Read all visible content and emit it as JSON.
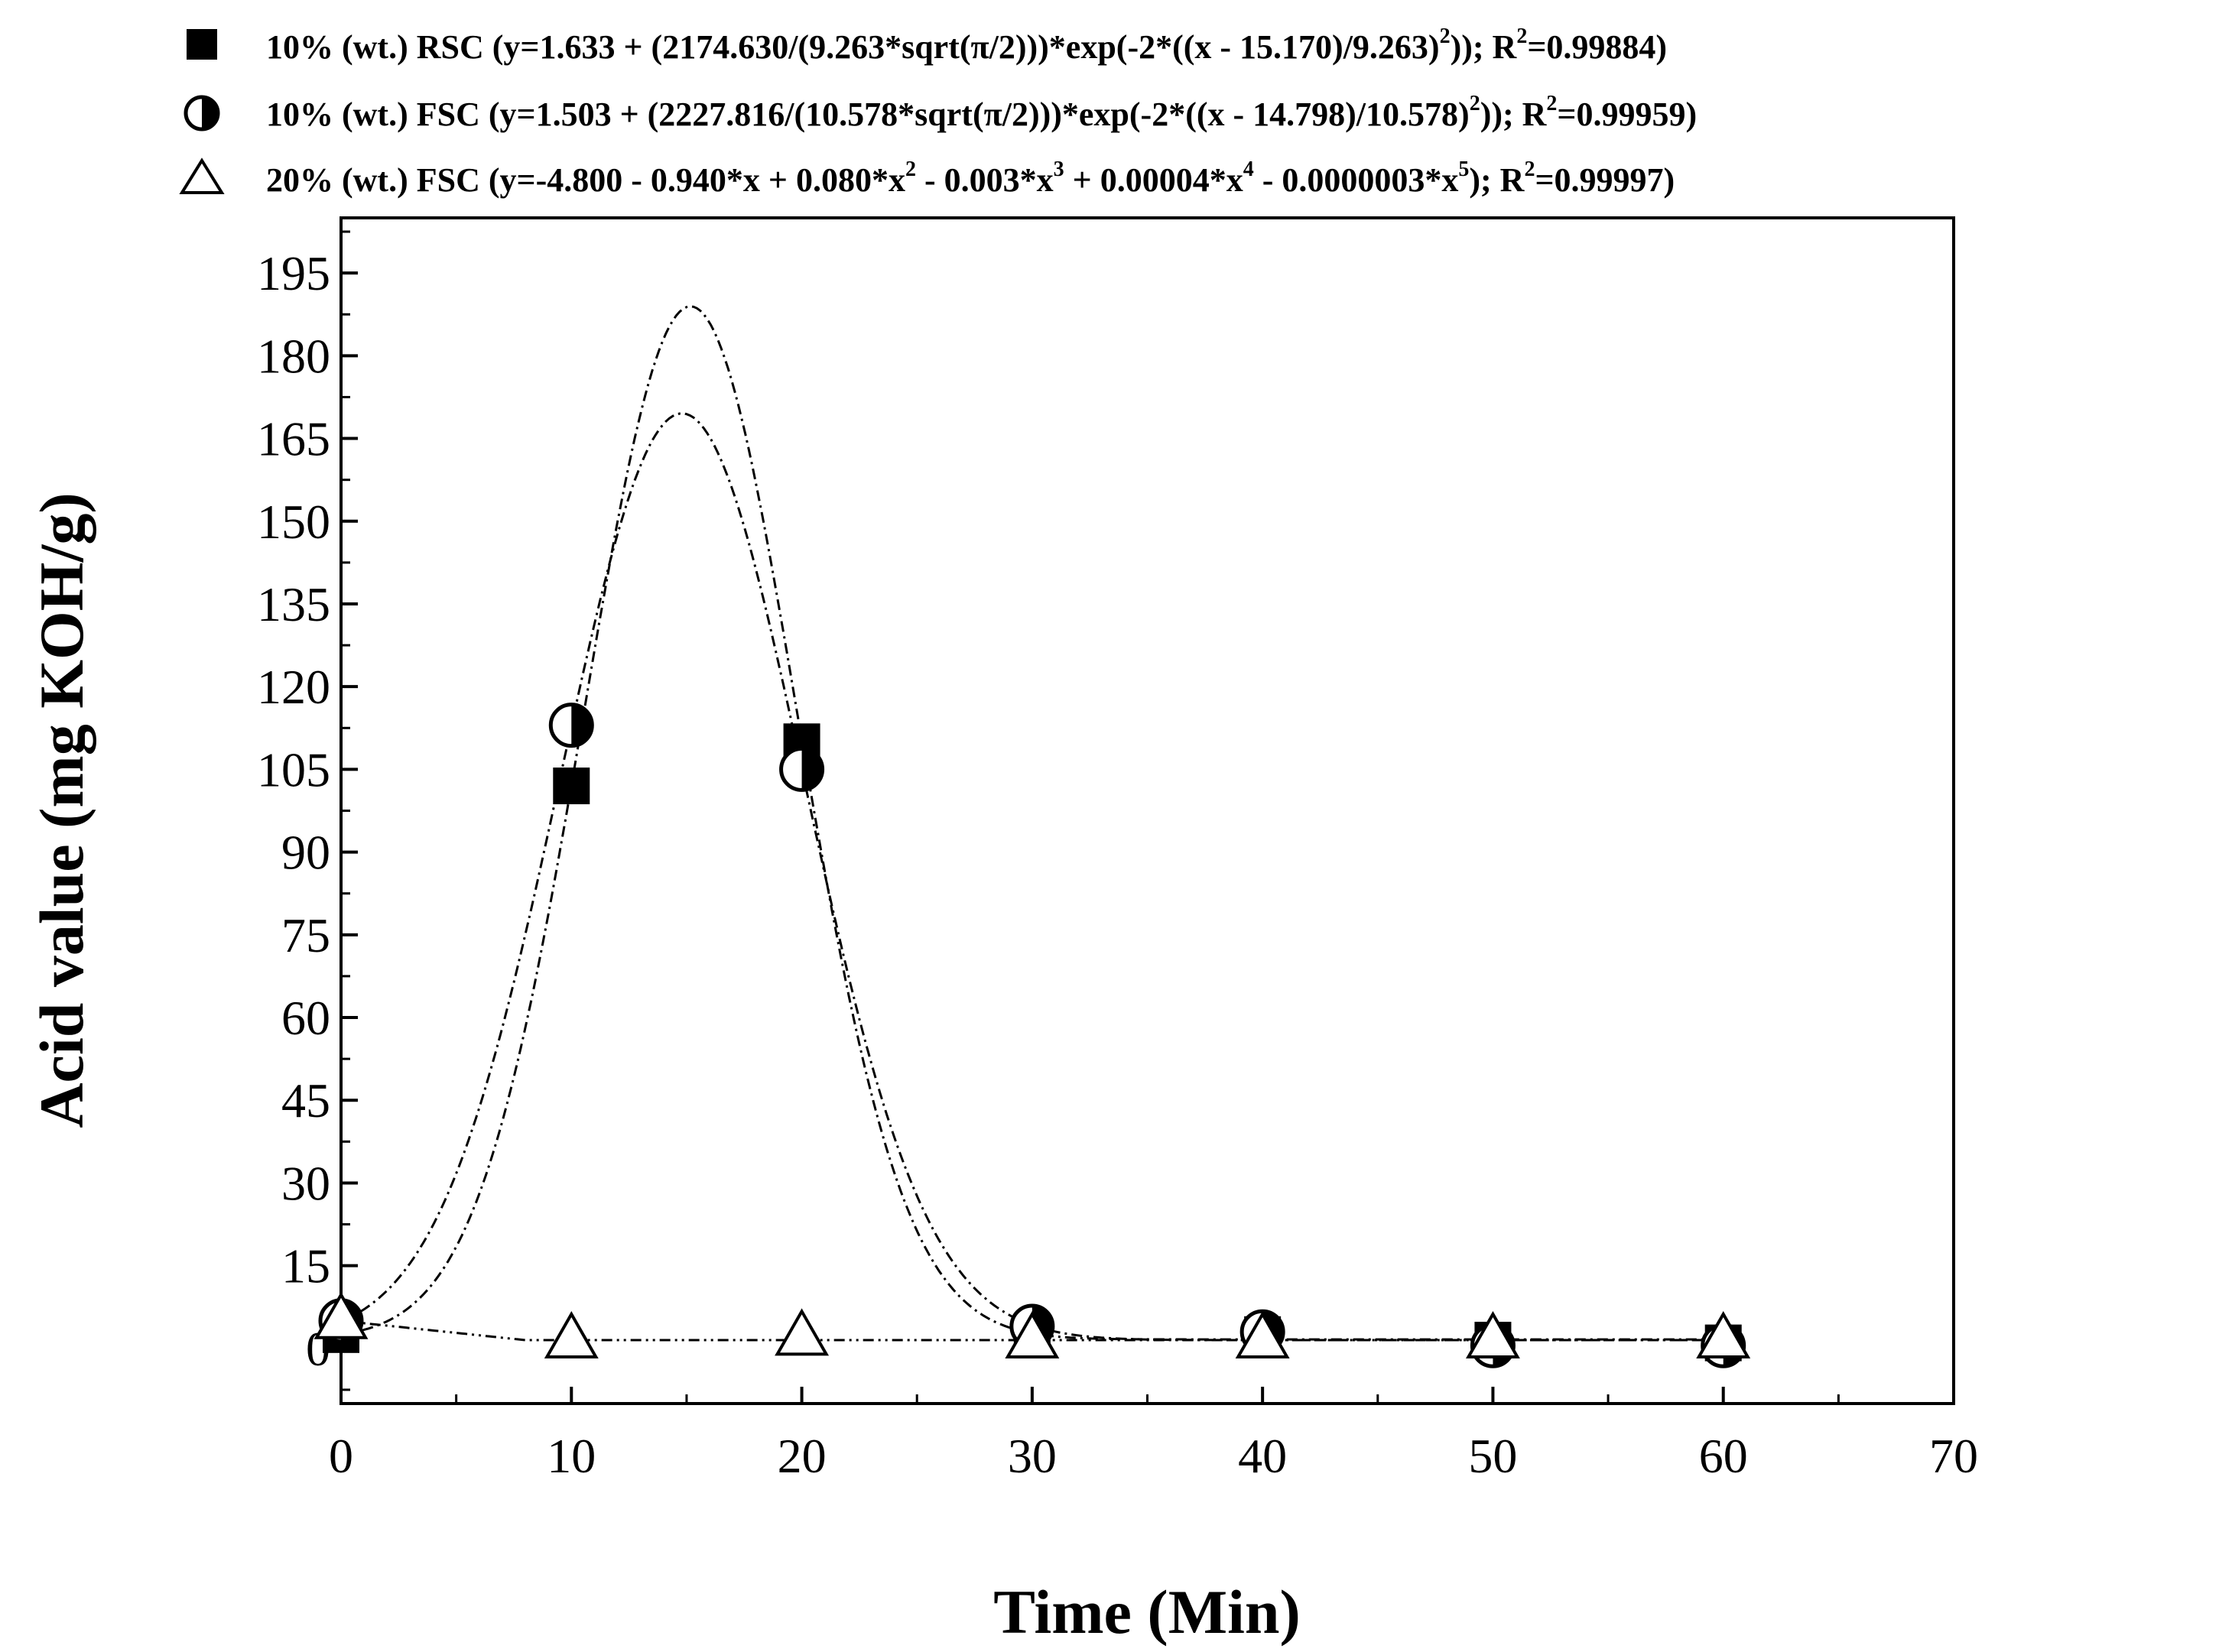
{
  "chart_data": {
    "type": "scatter",
    "title": "",
    "xlabel": "Time (Min)",
    "ylabel": "Acid value (mg KOH/g)",
    "xlim": [
      0,
      70
    ],
    "ylim": [
      -10,
      205
    ],
    "x_ticks": [
      0,
      10,
      20,
      30,
      40,
      50,
      60,
      70
    ],
    "y_ticks": [
      0,
      15,
      30,
      45,
      60,
      75,
      90,
      105,
      120,
      135,
      150,
      165,
      180,
      195
    ],
    "grid": false,
    "legend_position": "top",
    "series": [
      {
        "name": "10% (wt.) RSC",
        "marker": "filled-square",
        "fit_equation": "y=1.633 + (2174.630/(9.263*sqrt(π/2)))*exp(-2*((x - 15.170)/9.263)²)",
        "r_squared": "0.99884",
        "x": [
          0,
          10,
          20,
          30,
          40,
          50,
          60
        ],
        "y": [
          2.5,
          102,
          110,
          1.5,
          2.5,
          1.5,
          1.0
        ]
      },
      {
        "name": "10% (wt.) FSC",
        "marker": "half-filled-circle",
        "fit_equation": "y=1.503 + (2227.816/(10.578*sqrt(π/2)))*exp(-2*((x - 14.798)/10.578)²)",
        "r_squared": "0.99959",
        "x": [
          0,
          10,
          20,
          30,
          40,
          50,
          60
        ],
        "y": [
          5,
          113,
          105,
          4,
          3,
          0.5,
          0.5
        ]
      },
      {
        "name": "20% (wt.) FSC",
        "marker": "open-triangle",
        "fit_equation": "y=-4.800 - 0.940*x + 0.080*x² - 0.003*x³ + 0.00004*x⁴ - 0.0000003*x⁵",
        "r_squared": "0.99997",
        "x": [
          0,
          10,
          20,
          30,
          40,
          50,
          60
        ],
        "y": [
          5,
          1.5,
          2,
          1.5,
          1.5,
          1.5,
          1.5
        ]
      }
    ]
  },
  "legend": [
    {
      "icon": "filled-square-icon",
      "text_a": "10% (wt.) RSC (y=1.633 + (2174.630/(9.263*sqrt(π/2)))*exp(-2*((x - 15.170)/9.263)",
      "sup_a": "2",
      "text_b": ")); R",
      "sup_b": "2",
      "text_c": "=0.99884)"
    },
    {
      "icon": "half-filled-circle-icon",
      "text_a": "10% (wt.) FSC (y=1.503 + (2227.816/(10.578*sqrt(π/2)))*exp(-2*((x - 14.798)/10.578)",
      "sup_a": "2",
      "text_b": ")); R",
      "sup_b": "2",
      "text_c": "=0.99959)"
    },
    {
      "icon": "open-triangle-icon",
      "text_a": "20% (wt.) FSC (y=-4.800 - 0.940*x + 0.080*x",
      "sup_a": "2",
      "text_b": " - 0.003*x",
      "sup_b": "3",
      "text_c": " + 0.00004*x",
      "sup_c": "4",
      "text_d": " - 0.0000003*x",
      "sup_d": "5",
      "text_e": "); R",
      "sup_e": "2",
      "text_f": "=0.99997)"
    }
  ]
}
